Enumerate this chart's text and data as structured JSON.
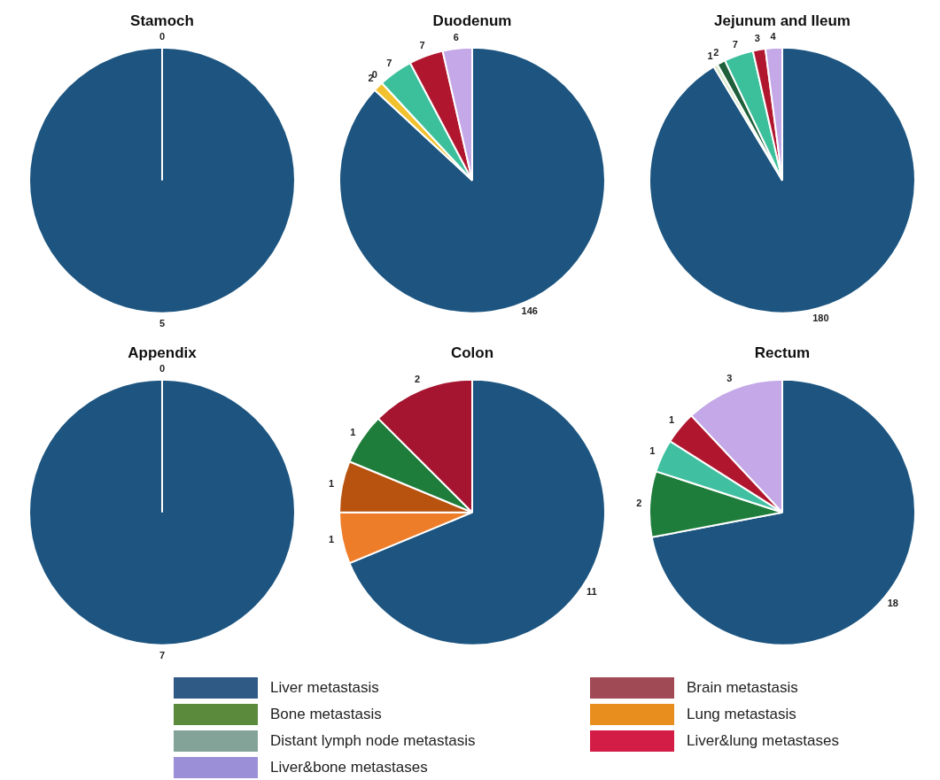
{
  "chart_data": [
    {
      "type": "pie",
      "title": "Stamoch",
      "categories": [
        null,
        null
      ],
      "values": [
        5,
        0
      ],
      "value_labels": [
        "5",
        "0"
      ],
      "colors": [
        "#1d5580",
        "#1e7d3a"
      ]
    },
    {
      "type": "pie",
      "title": "Duodenum",
      "categories": [
        null,
        null,
        null,
        null,
        null,
        null
      ],
      "values": [
        146,
        2,
        0,
        7,
        7,
        6
      ],
      "value_labels": [
        "146",
        "2",
        "0",
        "7",
        "7",
        "6"
      ],
      "colors": [
        "#1d5580",
        "#f2c12e",
        "#1e7d3a",
        "#3cbf9b",
        "#b0172f",
        "#c4a8e8"
      ]
    },
    {
      "type": "pie",
      "title": "Jejunum and Ileum",
      "categories": [
        null,
        null,
        null,
        null,
        null,
        null
      ],
      "values": [
        180,
        1,
        2,
        7,
        3,
        4
      ],
      "value_labels": [
        "180",
        "1",
        "2",
        "7",
        "3",
        "4"
      ],
      "colors": [
        "#1d5580",
        "#d8e8c8",
        "#1f5f3a",
        "#3cbf9b",
        "#b0172f",
        "#c4a8e8"
      ]
    },
    {
      "type": "pie",
      "title": "Appendix",
      "categories": [
        null,
        null
      ],
      "values": [
        7,
        0
      ],
      "value_labels": [
        "7",
        "0"
      ],
      "colors": [
        "#1d5580",
        "#1e7d3a"
      ]
    },
    {
      "type": "pie",
      "title": "Colon",
      "categories": [
        null,
        null,
        null,
        null,
        null
      ],
      "values": [
        11,
        1,
        1,
        1,
        2
      ],
      "value_labels": [
        "11",
        "1",
        "1",
        "1",
        "2"
      ],
      "colors": [
        "#1d5580",
        "#ee7d2a",
        "#b8530f",
        "#1e7d3a",
        "#a51530"
      ]
    },
    {
      "type": "pie",
      "title": "Rectum",
      "categories": [
        null,
        null,
        null,
        null,
        null
      ],
      "values": [
        18,
        2,
        1,
        1,
        3
      ],
      "value_labels": [
        "18",
        "2",
        "1",
        "1",
        "3"
      ],
      "colors": [
        "#1d5580",
        "#1e7d3a",
        "#40c0a0",
        "#b0172f",
        "#c4a8e8"
      ]
    },
    {
      "type": "other",
      "categories": [
        "Liver metastasis",
        "Bone metastasis",
        "Distant lymph node metastasis",
        "Liver&bone metastases",
        "Brain metastasis",
        "Lung metastasis",
        "Liver&lung metastases"
      ],
      "colors": [
        "#2e5a85",
        "#5b8a3c",
        "#83a398",
        "#9b8fd8",
        "#a04a55",
        "#e88e1e",
        "#d31c46"
      ]
    }
  ]
}
